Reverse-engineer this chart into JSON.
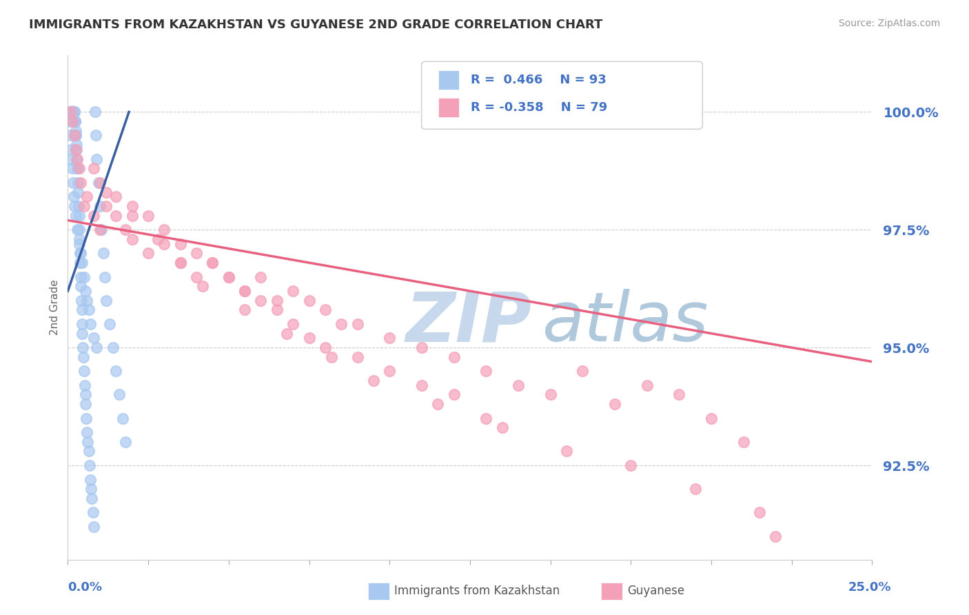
{
  "title": "IMMIGRANTS FROM KAZAKHSTAN VS GUYANESE 2ND GRADE CORRELATION CHART",
  "source": "Source: ZipAtlas.com",
  "ylabel": "2nd Grade",
  "yticks": [
    92.5,
    95.0,
    97.5,
    100.0
  ],
  "ytick_labels": [
    "92.5%",
    "95.0%",
    "97.5%",
    "100.0%"
  ],
  "xmin": 0.0,
  "xmax": 25.0,
  "ymin": 90.5,
  "ymax": 101.2,
  "blue_color": "#A8C8F0",
  "pink_color": "#F4A0B8",
  "trend_blue": "#3A5FA0",
  "trend_pink": "#E86080",
  "watermark_zip_color": "#C8D8EC",
  "watermark_atlas_color": "#B0C8DC",
  "grid_color": "#CCCCCC",
  "title_color": "#333333",
  "axis_label_color": "#4472C4",
  "dot_size": 120,
  "dot_linewidth": 1.5,
  "blue_scatter_x": [
    0.05,
    0.08,
    0.1,
    0.12,
    0.12,
    0.13,
    0.14,
    0.15,
    0.15,
    0.16,
    0.16,
    0.17,
    0.18,
    0.18,
    0.19,
    0.2,
    0.2,
    0.22,
    0.22,
    0.23,
    0.24,
    0.25,
    0.25,
    0.26,
    0.27,
    0.28,
    0.3,
    0.3,
    0.31,
    0.32,
    0.33,
    0.35,
    0.35,
    0.36,
    0.38,
    0.38,
    0.4,
    0.4,
    0.42,
    0.44,
    0.45,
    0.45,
    0.47,
    0.48,
    0.5,
    0.52,
    0.55,
    0.55,
    0.58,
    0.6,
    0.62,
    0.65,
    0.68,
    0.7,
    0.72,
    0.75,
    0.78,
    0.8,
    0.85,
    0.88,
    0.9,
    0.95,
    1.0,
    1.05,
    1.1,
    1.15,
    1.2,
    1.3,
    1.4,
    1.5,
    1.6,
    1.7,
    1.8,
    0.05,
    0.08,
    0.1,
    0.12,
    0.14,
    0.16,
    0.18,
    0.2,
    0.25,
    0.3,
    0.35,
    0.4,
    0.45,
    0.5,
    0.55,
    0.6,
    0.65,
    0.7,
    0.8,
    0.9
  ],
  "blue_scatter_y": [
    100.0,
    100.0,
    100.0,
    100.0,
    100.0,
    100.0,
    100.0,
    100.0,
    100.0,
    100.0,
    100.0,
    100.0,
    100.0,
    100.0,
    100.0,
    100.0,
    100.0,
    99.8,
    99.8,
    99.8,
    99.6,
    99.5,
    99.5,
    99.3,
    99.2,
    99.0,
    98.8,
    98.8,
    98.5,
    98.3,
    98.0,
    97.8,
    97.5,
    97.3,
    97.0,
    96.8,
    96.5,
    96.3,
    96.0,
    95.8,
    95.5,
    95.3,
    95.0,
    94.8,
    94.5,
    94.2,
    94.0,
    93.8,
    93.5,
    93.2,
    93.0,
    92.8,
    92.5,
    92.2,
    92.0,
    91.8,
    91.5,
    91.2,
    100.0,
    99.5,
    99.0,
    98.5,
    98.0,
    97.5,
    97.0,
    96.5,
    96.0,
    95.5,
    95.0,
    94.5,
    94.0,
    93.5,
    93.0,
    99.8,
    99.5,
    99.2,
    99.0,
    98.8,
    98.5,
    98.2,
    98.0,
    97.8,
    97.5,
    97.2,
    97.0,
    96.8,
    96.5,
    96.2,
    96.0,
    95.8,
    95.5,
    95.2,
    95.0
  ],
  "pink_scatter_x": [
    0.1,
    0.15,
    0.2,
    0.25,
    0.3,
    0.35,
    0.4,
    0.5,
    0.6,
    0.8,
    1.0,
    1.2,
    1.5,
    1.8,
    2.0,
    2.5,
    3.0,
    3.5,
    4.0,
    4.5,
    5.0,
    5.5,
    6.0,
    6.5,
    7.0,
    7.5,
    8.0,
    8.5,
    9.0,
    10.0,
    11.0,
    12.0,
    13.0,
    14.0,
    15.0,
    16.0,
    17.0,
    18.0,
    19.0,
    20.0,
    21.0,
    1.0,
    1.5,
    2.0,
    2.5,
    3.0,
    3.5,
    4.0,
    4.5,
    5.0,
    5.5,
    6.0,
    6.5,
    7.0,
    7.5,
    8.0,
    9.0,
    10.0,
    11.0,
    12.0,
    13.0,
    0.8,
    1.2,
    2.0,
    2.8,
    3.5,
    4.2,
    5.5,
    6.8,
    8.2,
    9.5,
    11.5,
    13.5,
    15.5,
    17.5,
    19.5,
    21.5,
    22.0
  ],
  "pink_scatter_y": [
    100.0,
    99.8,
    99.5,
    99.2,
    99.0,
    98.8,
    98.5,
    98.0,
    98.2,
    97.8,
    97.5,
    98.0,
    97.8,
    97.5,
    97.3,
    97.0,
    97.2,
    96.8,
    96.5,
    96.8,
    96.5,
    96.2,
    96.5,
    96.0,
    96.2,
    96.0,
    95.8,
    95.5,
    95.5,
    95.2,
    95.0,
    94.8,
    94.5,
    94.2,
    94.0,
    94.5,
    93.8,
    94.2,
    94.0,
    93.5,
    93.0,
    98.5,
    98.2,
    98.0,
    97.8,
    97.5,
    97.2,
    97.0,
    96.8,
    96.5,
    96.2,
    96.0,
    95.8,
    95.5,
    95.2,
    95.0,
    94.8,
    94.5,
    94.2,
    94.0,
    93.5,
    98.8,
    98.3,
    97.8,
    97.3,
    96.8,
    96.3,
    95.8,
    95.3,
    94.8,
    94.3,
    93.8,
    93.3,
    92.8,
    92.5,
    92.0,
    91.5,
    91.0
  ],
  "trend_blue_x0": 0.0,
  "trend_blue_x1": 1.9,
  "trend_blue_y0": 96.2,
  "trend_blue_y1": 100.0,
  "trend_pink_x0": 0.0,
  "trend_pink_x1": 25.0,
  "trend_pink_y0": 97.7,
  "trend_pink_y1": 94.7
}
